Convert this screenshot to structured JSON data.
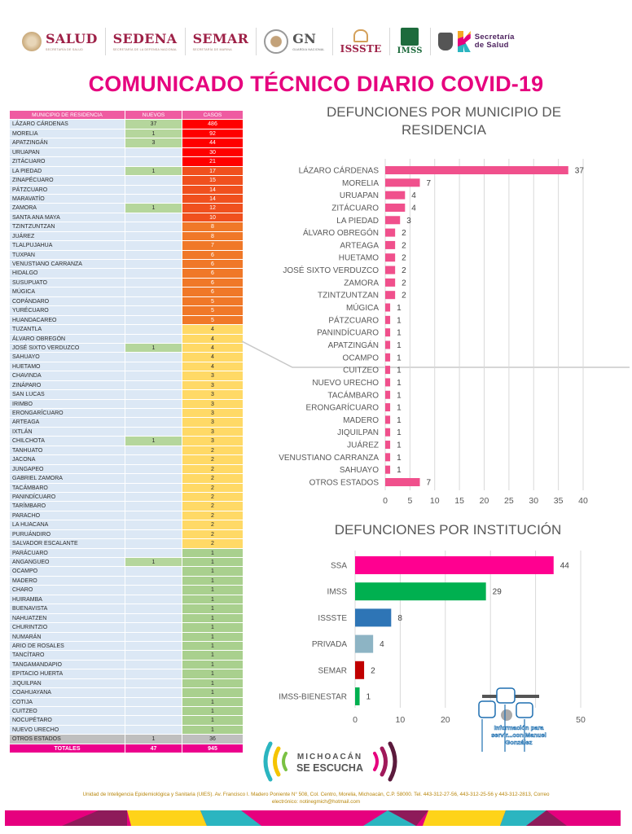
{
  "header": {
    "logos": [
      {
        "name": "SALUD",
        "subtitle": "SECRETARÍA DE SALUD"
      },
      {
        "name": "SEDENA",
        "subtitle": "SECRETARÍA DE LA DEFENSA NACIONAL"
      },
      {
        "name": "SEMAR",
        "subtitle": "SECRETARÍA DE MARINA"
      },
      {
        "name": "GN",
        "subtitle": "GUARDIA NACIONAL"
      },
      {
        "name": "ISSSTE"
      },
      {
        "name": "IMSS"
      },
      {
        "name": "Secretaría de Salud"
      }
    ],
    "title": "COMUNICADO TÉCNICO DIARIO COVID-19"
  },
  "table": {
    "headers": [
      "MUNICIPIO DE RESIDENCIA",
      "NUEVOS",
      "CASOS"
    ],
    "rows": [
      {
        "municipio": "LÁZARO CÁRDENAS",
        "nuevos": "37",
        "casos": "486"
      },
      {
        "municipio": "MORELIA",
        "nuevos": "1",
        "casos": "92"
      },
      {
        "municipio": "APATZINGÁN",
        "nuevos": "3",
        "casos": "44"
      },
      {
        "municipio": "URUAPAN",
        "nuevos": "",
        "casos": "30"
      },
      {
        "municipio": "ZITÁCUARO",
        "nuevos": "",
        "casos": "21"
      },
      {
        "municipio": "LA PIEDAD",
        "nuevos": "1",
        "casos": "17"
      },
      {
        "municipio": "ZINAPÉCUARO",
        "nuevos": "",
        "casos": "15"
      },
      {
        "municipio": "PÁTZCUARO",
        "nuevos": "",
        "casos": "14"
      },
      {
        "municipio": "MARAVATÍO",
        "nuevos": "",
        "casos": "14"
      },
      {
        "municipio": "ZAMORA",
        "nuevos": "1",
        "casos": "12"
      },
      {
        "municipio": "SANTA ANA MAYA",
        "nuevos": "",
        "casos": "10"
      },
      {
        "municipio": "TZINTZUNTZAN",
        "nuevos": "",
        "casos": "8"
      },
      {
        "municipio": "JUÁREZ",
        "nuevos": "",
        "casos": "8"
      },
      {
        "municipio": "TLALPUJAHUA",
        "nuevos": "",
        "casos": "7"
      },
      {
        "municipio": "TUXPAN",
        "nuevos": "",
        "casos": "6"
      },
      {
        "municipio": "VENUSTIANO CARRANZA",
        "nuevos": "",
        "casos": "6"
      },
      {
        "municipio": "HIDALGO",
        "nuevos": "",
        "casos": "6"
      },
      {
        "municipio": "SUSUPUATO",
        "nuevos": "",
        "casos": "6"
      },
      {
        "municipio": "MÚGICA",
        "nuevos": "",
        "casos": "6"
      },
      {
        "municipio": "COPÁNDARO",
        "nuevos": "",
        "casos": "5"
      },
      {
        "municipio": "YURÉCUARO",
        "nuevos": "",
        "casos": "5"
      },
      {
        "municipio": "HUANDACAREO",
        "nuevos": "",
        "casos": "5"
      },
      {
        "municipio": "TUZANTLA",
        "nuevos": "",
        "casos": "4"
      },
      {
        "municipio": "ÁLVARO OBREGÓN",
        "nuevos": "",
        "casos": "4"
      },
      {
        "municipio": "JOSÉ SIXTO VERDUZCO",
        "nuevos": "1",
        "casos": "4"
      },
      {
        "municipio": "SAHUAYO",
        "nuevos": "",
        "casos": "4"
      },
      {
        "municipio": "HUETAMO",
        "nuevos": "",
        "casos": "4"
      },
      {
        "municipio": "CHAVINDA",
        "nuevos": "",
        "casos": "3"
      },
      {
        "municipio": "ZINÁPARO",
        "nuevos": "",
        "casos": "3"
      },
      {
        "municipio": "SAN LUCAS",
        "nuevos": "",
        "casos": "3"
      },
      {
        "municipio": "IRIMBO",
        "nuevos": "",
        "casos": "3"
      },
      {
        "municipio": "ERONGARÍCUARO",
        "nuevos": "",
        "casos": "3"
      },
      {
        "municipio": "ARTEAGA",
        "nuevos": "",
        "casos": "3"
      },
      {
        "municipio": "IXTLÁN",
        "nuevos": "",
        "casos": "3"
      },
      {
        "municipio": "CHILCHOTA",
        "nuevos": "1",
        "casos": "3"
      },
      {
        "municipio": "TANHUATO",
        "nuevos": "",
        "casos": "2"
      },
      {
        "municipio": "JACONA",
        "nuevos": "",
        "casos": "2"
      },
      {
        "municipio": "JUNGAPEO",
        "nuevos": "",
        "casos": "2"
      },
      {
        "municipio": "GABRIEL ZAMORA",
        "nuevos": "",
        "casos": "2"
      },
      {
        "municipio": "TACÁMBARO",
        "nuevos": "",
        "casos": "2"
      },
      {
        "municipio": "PANINDÍCUARO",
        "nuevos": "",
        "casos": "2"
      },
      {
        "municipio": "TARÍMBARO",
        "nuevos": "",
        "casos": "2"
      },
      {
        "municipio": "PARACHO",
        "nuevos": "",
        "casos": "2"
      },
      {
        "municipio": "LA HUACANA",
        "nuevos": "",
        "casos": "2"
      },
      {
        "municipio": "PURUÁNDIRO",
        "nuevos": "",
        "casos": "2"
      },
      {
        "municipio": "SALVADOR ESCALANTE",
        "nuevos": "",
        "casos": "2"
      },
      {
        "municipio": "PARÁCUARO",
        "nuevos": "",
        "casos": "1"
      },
      {
        "municipio": "ANGANGUEO",
        "nuevos": "1",
        "casos": "1"
      },
      {
        "municipio": "OCAMPO",
        "nuevos": "",
        "casos": "1"
      },
      {
        "municipio": "MADERO",
        "nuevos": "",
        "casos": "1"
      },
      {
        "municipio": "CHARO",
        "nuevos": "",
        "casos": "1"
      },
      {
        "municipio": "HUIRAMBA",
        "nuevos": "",
        "casos": "1"
      },
      {
        "municipio": "BUENAVISTA",
        "nuevos": "",
        "casos": "1"
      },
      {
        "municipio": "NAHUATZEN",
        "nuevos": "",
        "casos": "1"
      },
      {
        "municipio": "CHURINTZIO",
        "nuevos": "",
        "casos": "1"
      },
      {
        "municipio": "NUMARÁN",
        "nuevos": "",
        "casos": "1"
      },
      {
        "municipio": "ARIO DE ROSALES",
        "nuevos": "",
        "casos": "1"
      },
      {
        "municipio": "TANCÍTARO",
        "nuevos": "",
        "casos": "1"
      },
      {
        "municipio": "TANGAMANDAPIO",
        "nuevos": "",
        "casos": "1"
      },
      {
        "municipio": "EPITACIO HUERTA",
        "nuevos": "",
        "casos": "1"
      },
      {
        "municipio": "JIQUILPAN",
        "nuevos": "",
        "casos": "1"
      },
      {
        "municipio": "COAHUAYANA",
        "nuevos": "",
        "casos": "1"
      },
      {
        "municipio": "COTIJA",
        "nuevos": "",
        "casos": "1"
      },
      {
        "municipio": "CUITZEO",
        "nuevos": "",
        "casos": "1"
      },
      {
        "municipio": "NOCUPÉTARO",
        "nuevos": "",
        "casos": "1"
      },
      {
        "municipio": "NUEVO URECHO",
        "nuevos": "",
        "casos": "1"
      }
    ],
    "otros": {
      "municipio": "OTROS ESTADOS",
      "nuevos": "1",
      "casos": "36"
    },
    "totales": {
      "label": "TOTALES",
      "nuevos": "47",
      "casos": "945"
    },
    "heat_colors": {
      "red": "#ff0000",
      "orange_red": "#f0501e",
      "orange": "#f07828",
      "yellow": "#ffd966",
      "green": "#a9d08e"
    }
  },
  "chart_data": [
    {
      "type": "bar",
      "orientation": "horizontal",
      "title": "DEFUNCIONES POR MUNICIPIO DE RESIDENCIA",
      "categories": [
        "LÁZARO CÁRDENAS",
        "MORELIA",
        "URUAPAN",
        "ZITÁCUARO",
        "LA PIEDAD",
        "ÁLVARO OBREGÓN",
        "ARTEAGA",
        "HUETAMO",
        "JOSÉ SIXTO VERDUZCO",
        "ZAMORA",
        "TZINTZUNTZAN",
        "MÚGICA",
        "PÁTZCUARO",
        "PANINDÍCUARO",
        "APATZINGÁN",
        "OCAMPO",
        "CUITZEO",
        "NUEVO URECHO",
        "TACÁMBARO",
        "ERONGARÍCUARO",
        "MADERO",
        "JIQUILPAN",
        "JUÁREZ",
        "VENUSTIANO CARRANZA",
        "SAHUAYO",
        "OTROS ESTADOS"
      ],
      "values": [
        37,
        7,
        4,
        4,
        3,
        2,
        2,
        2,
        2,
        2,
        2,
        1,
        1,
        1,
        1,
        1,
        1,
        1,
        1,
        1,
        1,
        1,
        1,
        1,
        1,
        7
      ],
      "xlim": [
        0,
        40
      ],
      "xticks": [
        "0",
        "5",
        "10",
        "15",
        "20",
        "25",
        "30",
        "35",
        "40"
      ],
      "grid": true,
      "color": "#f0508c"
    },
    {
      "type": "bar",
      "orientation": "horizontal",
      "title": "DEFUNCIONES POR INSTITUCIÓN",
      "categories": [
        "SSA",
        "IMSS",
        "ISSSTE",
        "PRIVADA",
        "SEMAR",
        "IMSS-BIENESTAR"
      ],
      "values": [
        44,
        29,
        8,
        4,
        2,
        1
      ],
      "colors": [
        "#ff0090",
        "#00b050",
        "#2e75b6",
        "#8db4c4",
        "#c00000",
        "#00b050"
      ],
      "xlim": [
        0,
        50
      ],
      "xticks": [
        "0",
        "10",
        "20",
        "",
        "",
        "50"
      ],
      "grid": true
    }
  ],
  "footer": {
    "campaign_line1": "MICHOACÁN",
    "campaign_line2": "SE ESCUCHA",
    "address_line1": "Unidad de Inteligencia Epidemiológica y Sanitaria (UIES). Av. Francisco I. Madero Poniente N° 508, Col. Centro, Morelia, Michoacán, C.P. 58000. Tel. 443-312-27-56, 443-312-25-56 y 443-312-2813, Correo",
    "address_line2": "electrónico: notinegmich@hotmail.com",
    "watermark": "Información para servir...con Manuel González"
  }
}
